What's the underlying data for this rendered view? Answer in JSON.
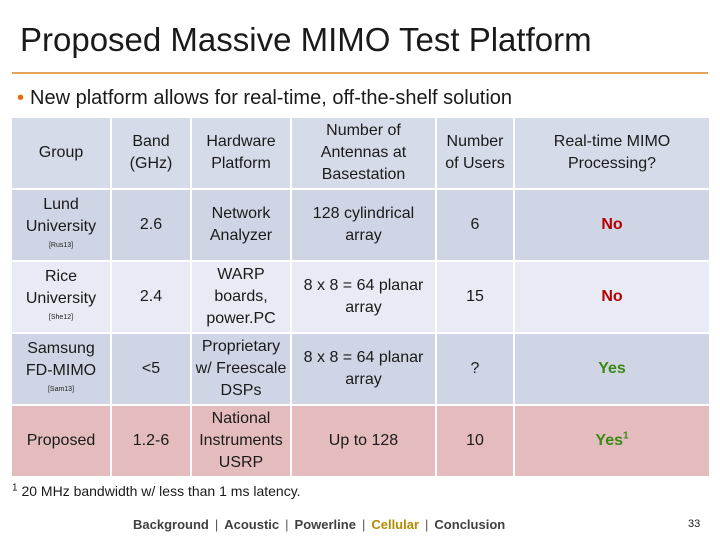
{
  "slide": {
    "title": "Proposed Massive MIMO Test Platform",
    "bullet": "New platform allows for real-time, off-the-shelf solution",
    "bullet_marker": "•",
    "page_number": "33"
  },
  "table": {
    "headers": [
      "Group",
      "Band (GHz)",
      "Hardware Platform",
      "Number of Antennas at Basestation",
      "Number of Users",
      "Real-time MIMO Processing?"
    ],
    "rows": [
      {
        "group": "Lund University",
        "cite": "[Rus13]",
        "band": "2.6",
        "hardware": "Network Analyzer",
        "antennas": "128 cylindrical array",
        "users": "6",
        "realtime": "No",
        "realtime_sup": ""
      },
      {
        "group": "Rice University",
        "cite": "[She12]",
        "band": "2.4",
        "hardware": "WARP boards, power.PC",
        "antennas": "8 x 8 = 64 planar array",
        "users": "15",
        "realtime": "No",
        "realtime_sup": ""
      },
      {
        "group": "Samsung FD-MIMO",
        "cite": "[Sam13]",
        "band": "<5",
        "hardware": "Proprietary w/ Freescale DSPs",
        "antennas": "8 x 8 = 64 planar array",
        "users": "?",
        "realtime": "Yes",
        "realtime_sup": ""
      },
      {
        "group": "Proposed",
        "cite": "",
        "band": "1.2-6",
        "hardware": "National Instruments USRP",
        "antennas": "Up to 128",
        "users": "10",
        "realtime": "Yes",
        "realtime_sup": "1"
      }
    ]
  },
  "footnote": {
    "marker": "1",
    "text": "20 MHz bandwidth w/ less than 1 ms latency."
  },
  "nav": {
    "items": [
      "Background",
      "Acoustic",
      "Powerline",
      "Cellular",
      "Conclusion"
    ],
    "separator": "|",
    "active": "Cellular"
  },
  "colors": {
    "accent_rule": "#e8a25a",
    "bullet": "#e46c0a",
    "header_bg": "#d5dbe8",
    "row_dark": "#cfd5e5",
    "row_light": "#e8ebf3",
    "row_proposed": "#e5bcbe",
    "no": "#b30000",
    "yes": "#3a8a12",
    "nav_active": "#b58a00"
  }
}
